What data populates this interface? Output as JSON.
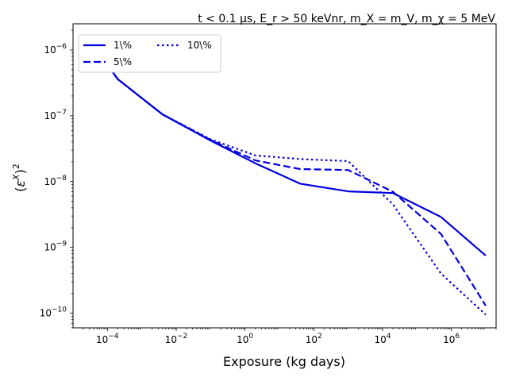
{
  "chart_data": {
    "type": "line",
    "title": "t < 0.1 μs, E_r > 50 keVnr, m_X = m_V, m_χ = 5 MeV",
    "xlabel": "Exposure (kg days)",
    "ylabel": "(ε^X)^2",
    "xscale": "log",
    "yscale": "log",
    "xlim": [
      1e-05,
      20000000.0
    ],
    "ylim": [
      6e-11,
      2.5e-06
    ],
    "x_ticks": [
      {
        "value": 0.0001,
        "base": "10",
        "exp": "−4"
      },
      {
        "value": 0.01,
        "base": "10",
        "exp": "−2"
      },
      {
        "value": 1.0,
        "base": "10",
        "exp": "0"
      },
      {
        "value": 100.0,
        "base": "10",
        "exp": "2"
      },
      {
        "value": 10000.0,
        "base": "10",
        "exp": "4"
      },
      {
        "value": 1000000.0,
        "base": "10",
        "exp": "6"
      }
    ],
    "y_ticks": [
      {
        "value": 1e-10,
        "base": "10",
        "exp": "−10"
      },
      {
        "value": 1e-09,
        "base": "10",
        "exp": "−9"
      },
      {
        "value": 1e-08,
        "base": "10",
        "exp": "−8"
      },
      {
        "value": 1e-07,
        "base": "10",
        "exp": "−7"
      },
      {
        "value": 1e-06,
        "base": "10",
        "exp": "−6"
      }
    ],
    "grid": false,
    "legend_position": "top-left",
    "legend_columns": 2,
    "series": [
      {
        "name": "1\\%",
        "color": "#0000e0",
        "dash": "solid",
        "x": [
          4e-05,
          0.0001,
          0.0002,
          0.004,
          0.1,
          2,
          40,
          1000,
          20000.0,
          500000.0,
          10000000.0
        ],
        "y": [
          1e-06,
          6e-07,
          3.6e-07,
          1.05e-07,
          4.2e-08,
          1.9e-08,
          9.3e-09,
          7.1e-09,
          6.7e-09,
          2.9e-09,
          7.5e-10
        ]
      },
      {
        "name": "5\\%",
        "color": "#0000e0",
        "dash": "dashed",
        "x": [
          4e-05,
          0.0001,
          0.0002,
          0.004,
          0.1,
          2,
          40,
          1000,
          20000.0,
          500000.0,
          10000000.0
        ],
        "y": [
          1e-06,
          6e-07,
          3.6e-07,
          1.05e-07,
          4.3e-08,
          2.1e-08,
          1.55e-08,
          1.5e-08,
          7e-09,
          1.6e-09,
          1.3e-10
        ]
      },
      {
        "name": "10\\%",
        "color": "#0000e0",
        "dash": "dotted",
        "x": [
          4e-05,
          0.0001,
          0.0002,
          0.004,
          0.1,
          2,
          40,
          1000,
          20000.0,
          500000.0,
          10000000.0
        ],
        "y": [
          1e-06,
          6e-07,
          3.6e-07,
          1.05e-07,
          4.4e-08,
          2.5e-08,
          2.2e-08,
          2.05e-08,
          4.5e-09,
          4e-10,
          9.5e-11
        ]
      }
    ]
  }
}
